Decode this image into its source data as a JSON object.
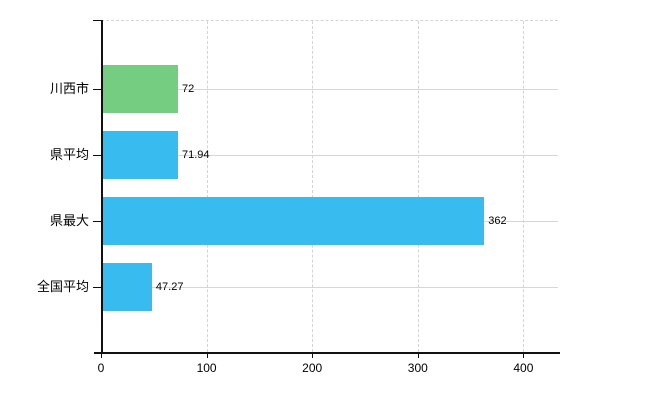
{
  "chart_data": {
    "type": "bar",
    "orientation": "horizontal",
    "title": "",
    "xlabel": "",
    "ylabel": "",
    "categories": [
      "川西市",
      "県平均",
      "県最大",
      "全国平均"
    ],
    "values": [
      72,
      71.94,
      362,
      47.27
    ],
    "value_labels": [
      "72",
      "71.94",
      "362",
      "47.27"
    ],
    "bar_colors": [
      "#74cd80",
      "#38bcef",
      "#38bcef",
      "#38bcef"
    ],
    "x_tick_values": [
      0,
      100,
      200,
      300,
      400
    ],
    "x_tick_labels": [
      "0",
      "100",
      "200",
      "300",
      "400"
    ],
    "xlim": [
      0,
      433
    ],
    "grid": true,
    "legend_position": "none",
    "colors": {
      "highlight_bar": "#74cd80",
      "default_bar": "#38bcef",
      "horizontal_gridline": "#d1dad1",
      "vertical_gridline": "#d7d0d7",
      "axis": "#111111",
      "text": "#000000",
      "background": "#ffffff"
    }
  }
}
